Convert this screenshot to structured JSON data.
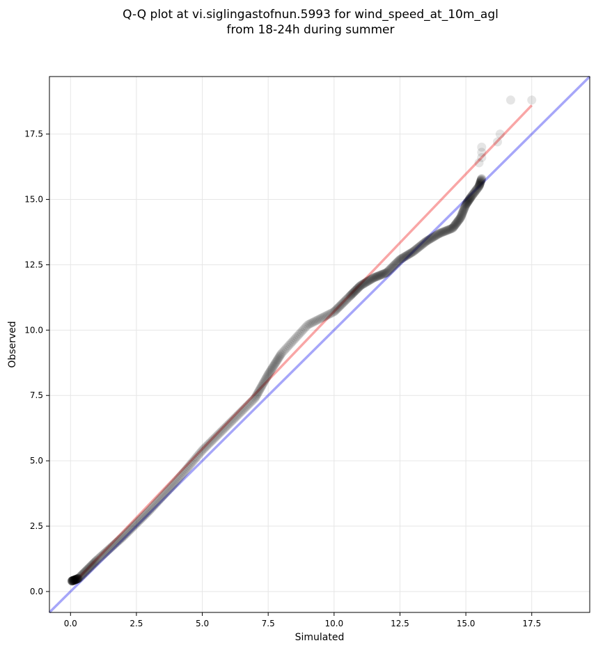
{
  "chart_data": {
    "type": "scatter",
    "title_line1": "Q-Q plot at vi.siglingastofnun.5993 for wind_speed_at_10m_agl",
    "title_line2": "from 18-24h during summer",
    "xlabel": "Simulated",
    "ylabel": "Observed",
    "xlim": [
      -0.8,
      19.7
    ],
    "ylim": [
      -0.8,
      19.7
    ],
    "xticks": [
      0.0,
      2.5,
      5.0,
      7.5,
      10.0,
      12.5,
      15.0,
      17.5
    ],
    "yticks": [
      0.0,
      2.5,
      5.0,
      7.5,
      10.0,
      12.5,
      15.0,
      17.5
    ],
    "xtick_labels": [
      "0.0",
      "2.5",
      "5.0",
      "7.5",
      "10.0",
      "12.5",
      "15.0",
      "17.5"
    ],
    "ytick_labels": [
      "0.0",
      "2.5",
      "5.0",
      "7.5",
      "10.0",
      "12.5",
      "15.0",
      "17.5"
    ],
    "grid": true,
    "colors": {
      "points": "#000000",
      "identity_line": "#0000ee",
      "fit_line": "#ee0000",
      "grid": "#e6e6e6"
    },
    "identity_line": {
      "x": [
        -0.8,
        19.7
      ],
      "y": [
        -0.8,
        19.7
      ]
    },
    "fit_line": {
      "x": [
        0.1,
        17.5
      ],
      "y": [
        0.3,
        18.6
      ]
    },
    "quantile_knots": {
      "x": [
        0.05,
        0.3,
        1.0,
        2.0,
        3.0,
        4.0,
        5.0,
        6.0,
        7.0,
        7.5,
        8.0,
        9.0,
        10.0,
        10.6,
        11.0,
        11.5,
        12.0,
        12.5,
        13.0,
        13.5,
        14.0,
        14.5,
        14.8,
        15.0,
        15.2,
        15.5,
        15.6
      ],
      "y": [
        0.4,
        0.5,
        1.2,
        2.1,
        3.1,
        4.2,
        5.4,
        6.4,
        7.4,
        8.3,
        9.1,
        10.2,
        10.7,
        11.3,
        11.7,
        12.0,
        12.2,
        12.7,
        13.0,
        13.4,
        13.7,
        13.9,
        14.3,
        14.8,
        15.1,
        15.5,
        15.8
      ]
    },
    "n_points": 520,
    "upper_outliers": {
      "x": [
        15.6,
        15.6,
        15.6,
        15.5,
        16.2,
        16.3,
        16.7,
        17.5
      ],
      "y": [
        16.6,
        16.8,
        17.0,
        16.4,
        17.2,
        17.5,
        18.8,
        18.8
      ]
    }
  }
}
